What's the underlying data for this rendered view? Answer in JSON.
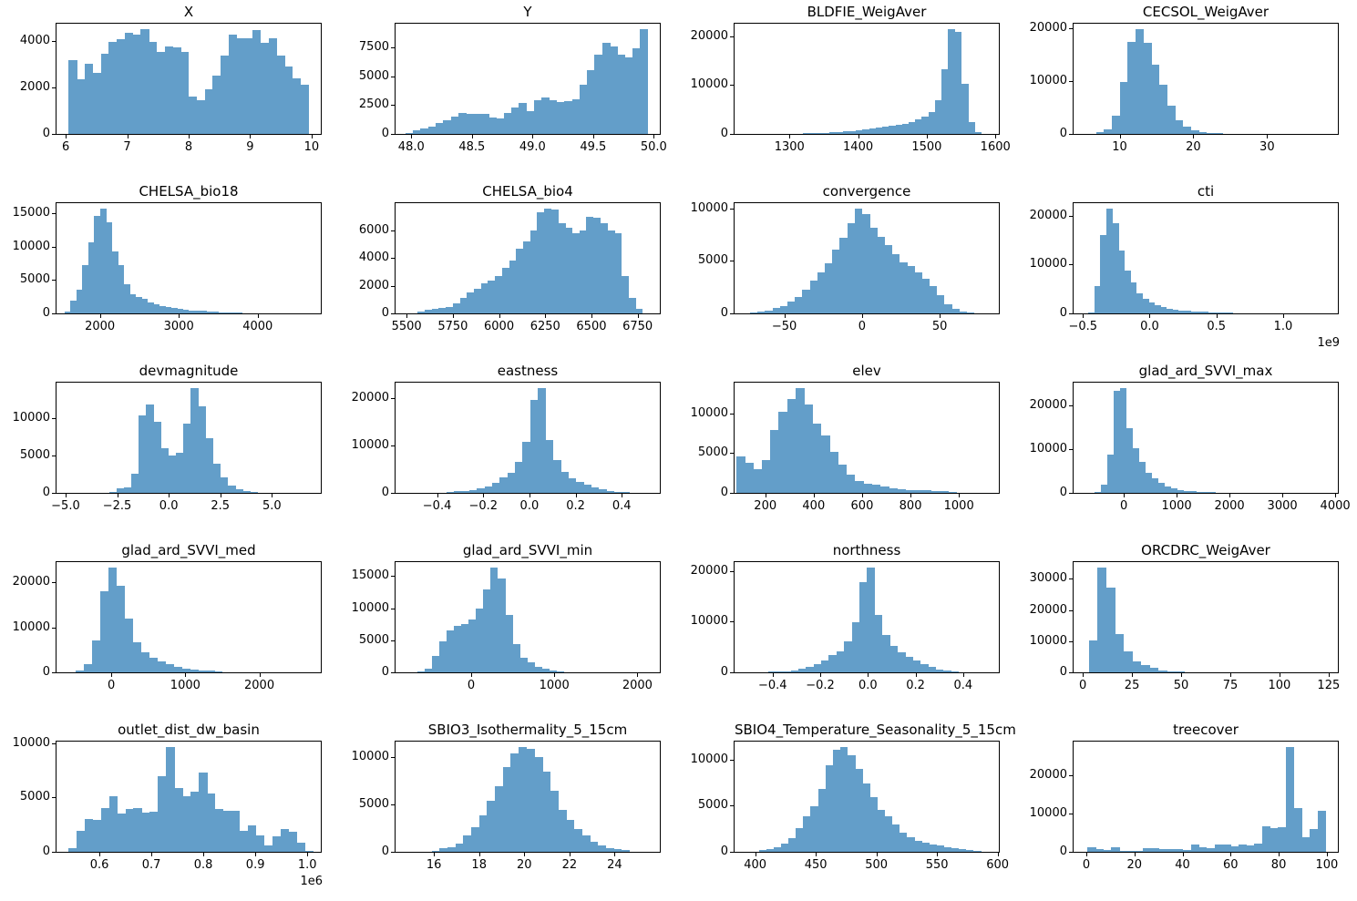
{
  "figure": {
    "background_color": "#ffffff",
    "bar_color": "#639ec9",
    "axis_color": "#000000",
    "rows": 5,
    "cols": 4
  },
  "chart_data": [
    {
      "type": "bar",
      "title": "X",
      "bin_start": 6.05,
      "bin_width": 0.13,
      "values": [
        3150,
        2350,
        3000,
        2600,
        3450,
        3950,
        4050,
        4350,
        4250,
        4500,
        3950,
        3500,
        3750,
        3700,
        3500,
        1600,
        1450,
        1900,
        2500,
        3350,
        4250,
        4100,
        4100,
        4450,
        3900,
        4100,
        3350,
        2900,
        2400,
        2100
      ],
      "xlim": [
        5.85,
        10.15
      ],
      "ylim": [
        0,
        4725
      ],
      "xticks": [
        6,
        7,
        8,
        9,
        10
      ],
      "xtick_labels": [
        "6",
        "7",
        "8",
        "9",
        "10"
      ],
      "yticks": [
        0,
        2000,
        4000
      ],
      "ytick_labels": [
        "0",
        "2000",
        "4000"
      ],
      "offset_label": ""
    },
    {
      "type": "bar",
      "title": "Y",
      "bin_start": 47.95,
      "bin_width": 0.0625,
      "values": [
        100,
        350,
        500,
        600,
        950,
        1200,
        1500,
        1800,
        1700,
        1750,
        1700,
        1450,
        1350,
        1800,
        2300,
        2700,
        2000,
        2900,
        3150,
        2900,
        2800,
        2850,
        3000,
        4300,
        5500,
        6900,
        7900,
        7600,
        6900,
        6600,
        7400,
        9100
      ],
      "xlim": [
        47.87,
        50.05
      ],
      "ylim": [
        0,
        9555
      ],
      "xticks": [
        48.0,
        48.5,
        49.0,
        49.5,
        50.0
      ],
      "xtick_labels": [
        "48.0",
        "48.5",
        "49.0",
        "49.5",
        "50.0"
      ],
      "yticks": [
        0,
        2500,
        5000,
        7500
      ],
      "ytick_labels": [
        "0",
        "2500",
        "5000",
        "7500"
      ],
      "offset_label": ""
    },
    {
      "type": "bar",
      "title": "BLDFIE_WeigAver",
      "bin_start": 1320,
      "bin_width": 9.6,
      "values": [
        100,
        150,
        200,
        250,
        300,
        400,
        500,
        600,
        700,
        900,
        1100,
        1300,
        1500,
        1700,
        1900,
        2100,
        2400,
        2900,
        3500,
        4500,
        6900,
        13300,
        21500,
        21000,
        10300,
        2400,
        300
      ],
      "xlim": [
        1220,
        1605
      ],
      "ylim": [
        0,
        22600
      ],
      "xticks": [
        1300,
        1400,
        1500,
        1600
      ],
      "xtick_labels": [
        "1300",
        "1400",
        "1500",
        "1600"
      ],
      "yticks": [
        0,
        10000,
        20000
      ],
      "ytick_labels": [
        "0",
        "10000",
        "20000"
      ],
      "offset_label": ""
    },
    {
      "type": "bar",
      "title": "CECSOL_WeigAver",
      "bin_start": 6.8,
      "bin_width": 1.07,
      "values": [
        300,
        800,
        3500,
        9800,
        17500,
        19900,
        17300,
        13200,
        9300,
        5300,
        2600,
        1300,
        700,
        400,
        250,
        150
      ],
      "xlim": [
        3.75,
        39.6
      ],
      "ylim": [
        0,
        20900
      ],
      "xticks": [
        10,
        20,
        30
      ],
      "xtick_labels": [
        "10",
        "20",
        "30"
      ],
      "yticks": [
        0,
        10000,
        20000
      ],
      "ytick_labels": [
        "0",
        "10000",
        "20000"
      ],
      "offset_label": ""
    },
    {
      "type": "bar",
      "title": "CHELSA_bio18",
      "bin_start": 1550,
      "bin_width": 75,
      "values": [
        300,
        1900,
        3500,
        7200,
        10600,
        14600,
        15700,
        13600,
        9300,
        7200,
        4300,
        2900,
        2500,
        2200,
        1700,
        1400,
        1100,
        900,
        800,
        650,
        550,
        450,
        400,
        350,
        300,
        250,
        200,
        150,
        120,
        100
      ],
      "xlim": [
        1450,
        4800
      ],
      "ylim": [
        0,
        16500
      ],
      "xticks": [
        2000,
        3000,
        4000
      ],
      "xtick_labels": [
        "2000",
        "3000",
        "4000"
      ],
      "yticks": [
        0,
        5000,
        10000,
        15000
      ],
      "ytick_labels": [
        "0",
        "5000",
        "10000",
        "15000"
      ],
      "offset_label": ""
    },
    {
      "type": "bar",
      "title": "CHELSA_bio4",
      "bin_start": 5560,
      "bin_width": 38,
      "values": [
        150,
        250,
        350,
        400,
        450,
        700,
        1100,
        1500,
        1800,
        2200,
        2400,
        2700,
        3300,
        3800,
        4700,
        5200,
        6000,
        7300,
        7600,
        7500,
        6500,
        6200,
        5800,
        6000,
        7000,
        6900,
        6500,
        6000,
        5800,
        2700,
        1100,
        300
      ],
      "xlim": [
        5440,
        6870
      ],
      "ylim": [
        0,
        7980
      ],
      "xticks": [
        5500,
        5750,
        6000,
        6250,
        6500,
        6750
      ],
      "xtick_labels": [
        "5500",
        "5750",
        "6000",
        "6250",
        "6500",
        "6750"
      ],
      "yticks": [
        0,
        2000,
        4000,
        6000
      ],
      "ytick_labels": [
        "0",
        "2000",
        "4000",
        "6000"
      ],
      "offset_label": ""
    },
    {
      "type": "bar",
      "title": "convergence",
      "bin_start": -72,
      "bin_width": 4.8,
      "values": [
        100,
        200,
        300,
        500,
        700,
        1100,
        1600,
        2300,
        3100,
        3900,
        4800,
        6100,
        7200,
        8600,
        10000,
        9500,
        8200,
        7300,
        6500,
        5600,
        4900,
        4500,
        3900,
        3300,
        2600,
        1700,
        900,
        400,
        150,
        80
      ],
      "xlim": [
        -82,
        88
      ],
      "ylim": [
        0,
        10500
      ],
      "xticks": [
        -50,
        0,
        50
      ],
      "xtick_labels": [
        "−50",
        "0",
        "50"
      ],
      "yticks": [
        0,
        5000,
        10000
      ],
      "ytick_labels": [
        "0",
        "5000",
        "10000"
      ],
      "offset_label": ""
    },
    {
      "type": "bar",
      "title": "cti",
      "bin_start": -0.46,
      "bin_width": 0.045,
      "values": [
        200,
        5600,
        16100,
        21500,
        18500,
        12800,
        8800,
        6300,
        4200,
        2900,
        2200,
        1700,
        1300,
        1000,
        800,
        600,
        500,
        400,
        350,
        300,
        250,
        200,
        150,
        100
      ],
      "xlim": [
        -0.57,
        1.41
      ],
      "ylim": [
        0,
        22600
      ],
      "xticks": [
        -0.5,
        0.0,
        0.5,
        1.0
      ],
      "xtick_labels": [
        "−0.5",
        "0.0",
        "0.5",
        "1.0"
      ],
      "yticks": [
        0,
        10000,
        20000
      ],
      "ytick_labels": [
        "0",
        "10000",
        "20000"
      ],
      "offset_label": "1e9"
    },
    {
      "type": "bar",
      "title": "devmagnitude",
      "bin_start": -2.9,
      "bin_width": 0.36,
      "values": [
        150,
        600,
        700,
        2500,
        10300,
        11800,
        9500,
        6000,
        5000,
        5400,
        9200,
        14000,
        11500,
        7300,
        3900,
        2100,
        1000,
        500,
        200,
        100
      ],
      "xlim": [
        -5.44,
        7.37
      ],
      "ylim": [
        0,
        14700
      ],
      "xticks": [
        -5.0,
        -2.5,
        0.0,
        2.5,
        5.0
      ],
      "xtick_labels": [
        "−5.0",
        "−2.5",
        "0.0",
        "2.5",
        "5.0"
      ],
      "yticks": [
        0,
        5000,
        10000
      ],
      "ytick_labels": [
        "0",
        "5000",
        "10000"
      ],
      "offset_label": ""
    },
    {
      "type": "bar",
      "title": "eastness",
      "bin_start": -0.36,
      "bin_width": 0.033,
      "values": [
        200,
        300,
        400,
        600,
        900,
        1300,
        2100,
        3200,
        4200,
        6500,
        10800,
        19700,
        22200,
        11200,
        6900,
        4400,
        3100,
        2300,
        1700,
        1100,
        700,
        400,
        250,
        150
      ],
      "xlim": [
        -0.58,
        0.565
      ],
      "ylim": [
        0,
        23300
      ],
      "xticks": [
        -0.4,
        -0.2,
        0.0,
        0.2,
        0.4
      ],
      "xtick_labels": [
        "−0.4",
        "−0.2",
        "0.0",
        "0.2",
        "0.4"
      ],
      "yticks": [
        0,
        10000,
        20000
      ],
      "ytick_labels": [
        "0",
        "10000",
        "20000"
      ],
      "offset_label": ""
    },
    {
      "type": "bar",
      "title": "elev",
      "bin_start": 80,
      "bin_width": 35,
      "values": [
        4600,
        3800,
        3000,
        4100,
        7900,
        10200,
        11800,
        13200,
        11100,
        8700,
        7200,
        5200,
        3600,
        2300,
        1500,
        1200,
        1000,
        800,
        600,
        500,
        400,
        350,
        300,
        250,
        200,
        150
      ],
      "xlim": [
        73,
        1165
      ],
      "ylim": [
        0,
        13900
      ],
      "xticks": [
        200,
        400,
        600,
        800,
        1000
      ],
      "xtick_labels": [
        "200",
        "400",
        "600",
        "800",
        "1000"
      ],
      "yticks": [
        0,
        5000,
        10000
      ],
      "ytick_labels": [
        "0",
        "5000",
        "10000"
      ],
      "offset_label": ""
    },
    {
      "type": "bar",
      "title": "glad_ard_SVVI_max",
      "bin_start": -550,
      "bin_width": 120,
      "values": [
        300,
        1800,
        8700,
        23300,
        24000,
        14800,
        10300,
        7000,
        4600,
        3400,
        2200,
        1500,
        1100,
        700,
        500,
        400,
        300,
        250,
        200,
        100
      ],
      "xlim": [
        -950,
        4050
      ],
      "ylim": [
        0,
        25200
      ],
      "xticks": [
        0,
        1000,
        2000,
        3000,
        4000
      ],
      "xtick_labels": [
        "0",
        "1000",
        "2000",
        "3000",
        "4000"
      ],
      "yticks": [
        0,
        10000,
        20000
      ],
      "ytick_labels": [
        "0",
        "10000",
        "20000"
      ],
      "offset_label": ""
    },
    {
      "type": "bar",
      "title": "glad_ard_SVVI_med",
      "bin_start": -480,
      "bin_width": 110,
      "values": [
        400,
        1900,
        7100,
        18000,
        23300,
        19200,
        11900,
        6600,
        4500,
        3300,
        2400,
        1800,
        1300,
        900,
        600,
        500,
        400,
        300
      ],
      "xlim": [
        -740,
        2830
      ],
      "ylim": [
        0,
        24500
      ],
      "xticks": [
        0,
        1000,
        2000
      ],
      "xtick_labels": [
        "0",
        "1000",
        "2000"
      ],
      "yticks": [
        0,
        10000,
        20000
      ],
      "ytick_labels": [
        "0",
        "10000",
        "20000"
      ],
      "offset_label": ""
    },
    {
      "type": "bar",
      "title": "glad_ard_SVVI_min",
      "bin_start": -650,
      "bin_width": 88,
      "values": [
        200,
        500,
        2500,
        4900,
        6600,
        7300,
        7600,
        8300,
        9900,
        12900,
        16400,
        14700,
        8900,
        4400,
        2300,
        1500,
        800,
        500,
        300,
        200
      ],
      "xlim": [
        -910,
        2270
      ],
      "ylim": [
        0,
        17200
      ],
      "xticks": [
        0,
        1000,
        2000
      ],
      "xtick_labels": [
        "0",
        "1000",
        "2000"
      ],
      "yticks": [
        0,
        5000,
        10000,
        15000
      ],
      "ytick_labels": [
        "0",
        "5000",
        "10000",
        "15000"
      ],
      "offset_label": ""
    },
    {
      "type": "bar",
      "title": "northness",
      "bin_start": -0.42,
      "bin_width": 0.032,
      "values": [
        100,
        150,
        250,
        400,
        700,
        1100,
        1600,
        2400,
        3400,
        4200,
        6200,
        9900,
        17900,
        20800,
        11300,
        7300,
        5200,
        3900,
        3000,
        2300,
        1600,
        1000,
        600,
        300,
        150
      ],
      "xlim": [
        -0.56,
        0.55
      ],
      "ylim": [
        0,
        21800
      ],
      "xticks": [
        -0.4,
        -0.2,
        0.0,
        0.2,
        0.4
      ],
      "xtick_labels": [
        "−0.4",
        "−0.2",
        "0.0",
        "0.2",
        "0.4"
      ],
      "yticks": [
        0,
        10000,
        20000
      ],
      "ytick_labels": [
        "0",
        "10000",
        "20000"
      ],
      "offset_label": ""
    },
    {
      "type": "bar",
      "title": "ORCDRC_WeigAver",
      "bin_start": 3,
      "bin_width": 4.4,
      "values": [
        10200,
        33700,
        27100,
        12400,
        6700,
        3500,
        2200,
        1400,
        700,
        400,
        250
      ],
      "xlim": [
        -4.7,
        129.7
      ],
      "ylim": [
        0,
        35400
      ],
      "xticks": [
        0,
        25,
        50,
        75,
        100,
        125
      ],
      "xtick_labels": [
        "0",
        "25",
        "50",
        "75",
        "100",
        "125"
      ],
      "yticks": [
        0,
        10000,
        20000,
        30000
      ],
      "ytick_labels": [
        "0",
        "10000",
        "20000",
        "30000"
      ],
      "offset_label": ""
    },
    {
      "type": "bar",
      "title": "outlet_dist_dw_basin",
      "bin_start": 0.54,
      "bin_width": 0.0157,
      "values": [
        350,
        1900,
        3000,
        2900,
        4050,
        5100,
        3500,
        3950,
        4000,
        3600,
        3700,
        6950,
        9650,
        5900,
        5100,
        5550,
        7300,
        5400,
        3900,
        3750,
        3800,
        1900,
        2400,
        1500,
        550,
        1400,
        2100,
        1850,
        800,
        100
      ],
      "xlim": [
        0.5175,
        1.026
      ],
      "ylim": [
        0,
        10130
      ],
      "xticks": [
        0.6,
        0.7,
        0.8,
        0.9,
        1.0
      ],
      "xtick_labels": [
        "0.6",
        "0.7",
        "0.8",
        "0.9",
        "1.0"
      ],
      "yticks": [
        0,
        5000,
        10000
      ],
      "ytick_labels": [
        "0",
        "5000",
        "10000"
      ],
      "offset_label": "1e6"
    },
    {
      "type": "bar",
      "title": "SBIO3_Isothermality_5_15cm",
      "bin_start": 15.9,
      "bin_width": 0.35,
      "values": [
        100,
        350,
        500,
        900,
        1700,
        2600,
        3900,
        5400,
        6900,
        9000,
        10400,
        11100,
        10900,
        10000,
        8500,
        6500,
        4400,
        3350,
        2400,
        1700,
        1100,
        700,
        400,
        250,
        150
      ],
      "xlim": [
        14.3,
        26.0
      ],
      "ylim": [
        0,
        11650
      ],
      "xticks": [
        16,
        18,
        20,
        22,
        24
      ],
      "xtick_labels": [
        "16",
        "18",
        "20",
        "22",
        "24"
      ],
      "yticks": [
        0,
        5000,
        10000
      ],
      "ytick_labels": [
        "0",
        "5000",
        "10000"
      ],
      "offset_label": ""
    },
    {
      "type": "bar",
      "title": "SBIO4_Temperature_Seasonality_5_15cm",
      "bin_start": 403,
      "bin_width": 6.1,
      "values": [
        150,
        300,
        500,
        900,
        1500,
        2600,
        3900,
        4900,
        6800,
        9400,
        11100,
        11400,
        10500,
        9000,
        7400,
        5900,
        4600,
        3900,
        3000,
        2100,
        1600,
        1200,
        1000,
        800,
        650,
        500,
        400,
        300,
        200,
        100
      ],
      "xlim": [
        383,
        601
      ],
      "ylim": [
        0,
        11970
      ],
      "xticks": [
        400,
        450,
        500,
        550,
        600
      ],
      "xtick_labels": [
        "400",
        "450",
        "500",
        "550",
        "600"
      ],
      "yticks": [
        0,
        5000,
        10000
      ],
      "ytick_labels": [
        "0",
        "5000",
        "10000"
      ],
      "offset_label": ""
    },
    {
      "type": "bar",
      "title": "treecover",
      "bin_start": 0.5,
      "bin_width": 3.3,
      "values": [
        1100,
        600,
        500,
        1200,
        300,
        200,
        300,
        900,
        1000,
        600,
        700,
        800,
        500,
        2000,
        1100,
        900,
        1900,
        1900,
        1500,
        1900,
        1600,
        2100,
        6700,
        6100,
        6300,
        27300,
        11300,
        3700,
        5900,
        10700
      ],
      "xlim": [
        -5.3,
        104.6
      ],
      "ylim": [
        0,
        28700
      ],
      "xticks": [
        0,
        20,
        40,
        60,
        80,
        100
      ],
      "xtick_labels": [
        "0",
        "20",
        "40",
        "60",
        "80",
        "100"
      ],
      "yticks": [
        0,
        10000,
        20000
      ],
      "ytick_labels": [
        "0",
        "10000",
        "20000"
      ],
      "offset_label": ""
    }
  ]
}
